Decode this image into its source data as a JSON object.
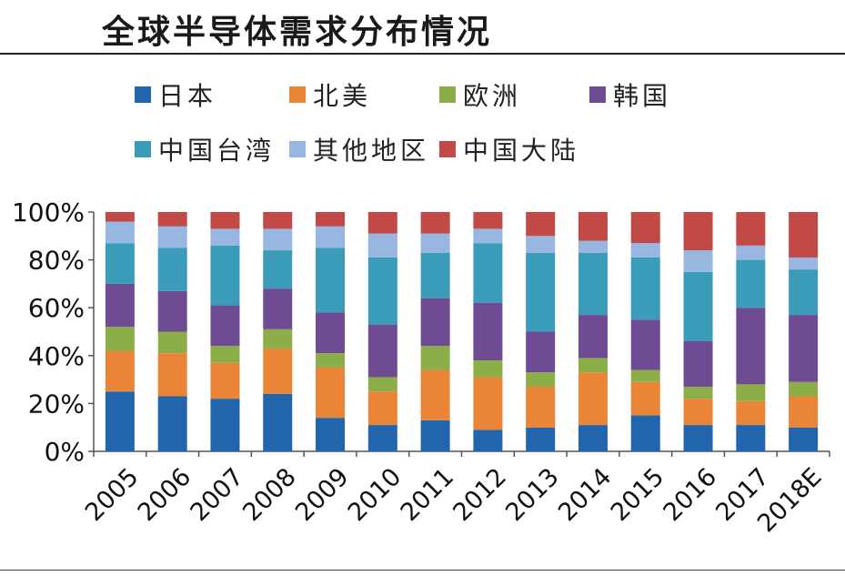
{
  "header": {
    "title": "全球半导体需求分布情况"
  },
  "colors": {
    "日本": "#2166ac",
    "北美": "#ea8537",
    "欧洲": "#8bae48",
    "韩国": "#6f4b93",
    "中国台湾": "#3a9cb8",
    "其他地区": "#97b6e0",
    "中国大陆": "#c14a46"
  },
  "chart_data": {
    "type": "bar",
    "stacked": true,
    "title": "全球半导体需求分布情况",
    "xlabel": "",
    "ylabel": "",
    "ylim": [
      0,
      100
    ],
    "y_ticks": [
      "0%",
      "20%",
      "40%",
      "60%",
      "80%",
      "100%"
    ],
    "legend_position": "top",
    "categories": [
      "2005",
      "2006",
      "2007",
      "2008",
      "2009",
      "2010",
      "2011",
      "2012",
      "2013",
      "2014",
      "2015",
      "2016",
      "2017",
      "2018E"
    ],
    "series": [
      {
        "name": "日本",
        "values": [
          25,
          23,
          22,
          24,
          14,
          11,
          13,
          9,
          10,
          11,
          15,
          11,
          11,
          10
        ]
      },
      {
        "name": "北美",
        "values": [
          17,
          18,
          15,
          19,
          21,
          14,
          21,
          22,
          17,
          22,
          14,
          11,
          10,
          13
        ]
      },
      {
        "name": "欧洲",
        "values": [
          10,
          9,
          7,
          8,
          6,
          6,
          10,
          7,
          6,
          6,
          5,
          5,
          7,
          6
        ]
      },
      {
        "name": "韩国",
        "values": [
          18,
          17,
          17,
          17,
          17,
          22,
          20,
          24,
          17,
          18,
          21,
          19,
          32,
          28
        ]
      },
      {
        "name": "中国台湾",
        "values": [
          17,
          18,
          25,
          16,
          27,
          28,
          19,
          25,
          33,
          26,
          26,
          29,
          20,
          19
        ]
      },
      {
        "name": "其他地区",
        "values": [
          9,
          9,
          7,
          9,
          9,
          10,
          8,
          6,
          7,
          5,
          6,
          9,
          6,
          5
        ]
      },
      {
        "name": "中国大陆",
        "values": [
          4,
          6,
          7,
          7,
          6,
          9,
          9,
          7,
          10,
          12,
          13,
          16,
          14,
          19
        ]
      }
    ]
  }
}
